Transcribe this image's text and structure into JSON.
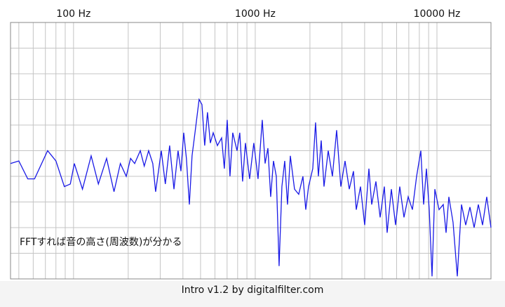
{
  "chart_data": {
    "type": "line",
    "x_scale": "log",
    "grid": true,
    "color": "#1a1ae6",
    "xlim": [
      45,
      19830
    ],
    "ylim": [
      -100,
      0
    ],
    "xticks": [
      {
        "value": 100,
        "label": "100 Hz"
      },
      {
        "value": 1000,
        "label": "1000 Hz"
      },
      {
        "value": 10000,
        "label": "10000 Hz"
      }
    ],
    "xminor_grid": [
      50,
      60,
      70,
      80,
      90,
      200,
      300,
      400,
      500,
      600,
      700,
      800,
      900,
      2000,
      3000,
      4000,
      5000,
      6000,
      7000,
      8000,
      9000
    ],
    "yticks": [
      -100,
      -90,
      -80,
      -70,
      -60,
      -50,
      -40,
      -30,
      -20,
      -10,
      0
    ],
    "annotation": "FFTすれば音の高さ(周波数)が分かる",
    "x": [
      45,
      50,
      56,
      61,
      72,
      80,
      89,
      96,
      101,
      112,
      125,
      137,
      152,
      167,
      181,
      195,
      206,
      217,
      233,
      245,
      259,
      273,
      283,
      304,
      320,
      338,
      357,
      376,
      390,
      404,
      418,
      434,
      449,
      466,
      491,
      509,
      527,
      546,
      566,
      587,
      619,
      653,
      676,
      701,
      726,
      752,
      794,
      822,
      852,
      883,
      931,
      982,
      1036,
      1093,
      1133,
      1174,
      1216,
      1260,
      1306,
      1353,
      1402,
      1453,
      1505,
      1560,
      1645,
      1735,
      1830,
      1897,
      1965,
      2073,
      2148,
      2226,
      2307,
      2390,
      2521,
      2659,
      2805,
      2958,
      3120,
      3292,
      3472,
      3597,
      3795,
      4002,
      4222,
      4375,
      4615,
      4868,
      5134,
      5320,
      5611,
      5919,
      6243,
      6585,
      6946,
      7328,
      7727,
      8152,
      8447,
      8752,
      9069,
      9397,
      9737,
      10270,
      10832,
      11224,
      11630,
      12267,
      12942,
      13650,
      14400,
      15190,
      16020,
      16900,
      17823,
      18796,
      19830
    ],
    "values": [
      -55,
      -54,
      -61,
      -61,
      -50,
      -54,
      -64,
      -63,
      -55,
      -65,
      -52,
      -63,
      -53,
      -66,
      -55,
      -60,
      -53,
      -55,
      -50,
      -56,
      -50,
      -55,
      -66,
      -50,
      -63,
      -48,
      -65,
      -50,
      -58,
      -43,
      -53,
      -71,
      -52,
      -43,
      -30,
      -32,
      -48,
      -35,
      -47,
      -43,
      -48,
      -45,
      -57,
      -38,
      -60,
      -43,
      -50,
      -43,
      -62,
      -47,
      -61,
      -47,
      -61,
      -38,
      -55,
      -49,
      -68,
      -54,
      -60,
      -95,
      -64,
      -54,
      -71,
      -52,
      -65,
      -67,
      -60,
      -73,
      -64,
      -57,
      -39,
      -60,
      -46,
      -64,
      -50,
      -60,
      -42,
      -64,
      -54,
      -65,
      -58,
      -73,
      -64,
      -79,
      -57,
      -71,
      -62,
      -76,
      -64,
      -82,
      -65,
      -79,
      -64,
      -76,
      -68,
      -73,
      -60,
      -50,
      -71,
      -57,
      -73,
      -99,
      -65,
      -73,
      -71,
      -82,
      -68,
      -78,
      -99,
      -71,
      -79,
      -72,
      -80,
      -71,
      -79,
      -68,
      -80
    ]
  },
  "footer": "Intro v1.2 by digitalfilter.com"
}
